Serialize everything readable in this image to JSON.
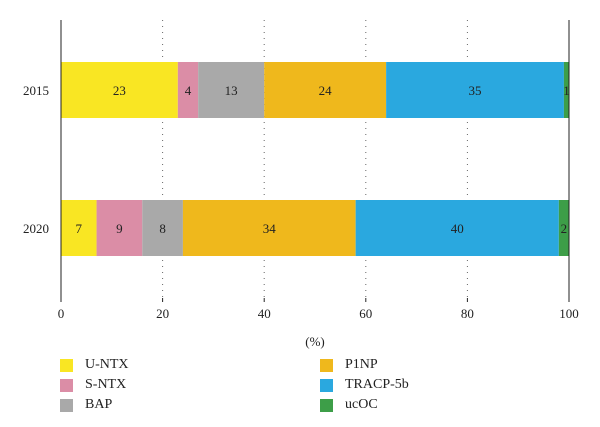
{
  "chart_data": {
    "type": "bar",
    "orientation": "horizontal",
    "stacked": true,
    "categories": [
      "2015",
      "2020"
    ],
    "series": [
      {
        "name": "U-NTX",
        "values": [
          23,
          7
        ],
        "color": "#f9e623"
      },
      {
        "name": "S-NTX",
        "values": [
          4,
          9
        ],
        "color": "#db8da6"
      },
      {
        "name": "BAP",
        "values": [
          13,
          8
        ],
        "color": "#a9a9a9"
      },
      {
        "name": "P1NP",
        "values": [
          24,
          34
        ],
        "color": "#efb81c"
      },
      {
        "name": "TRACP-5b",
        "values": [
          35,
          40
        ],
        "color": "#2aa8df"
      },
      {
        "name": "ucOC",
        "values": [
          1,
          2
        ],
        "color": "#3d9e48"
      }
    ],
    "data_labels": [
      [
        "23",
        "4",
        "13",
        "24",
        "35",
        "1"
      ],
      [
        "7",
        "9",
        "8",
        "34",
        "40",
        "2"
      ]
    ],
    "xticks": [
      "0",
      "20",
      "40",
      "60",
      "80",
      "100"
    ],
    "xlabel": "(%)",
    "xlim": [
      0,
      100
    ],
    "grid": "vertical dotted",
    "legend_position": "bottom"
  }
}
